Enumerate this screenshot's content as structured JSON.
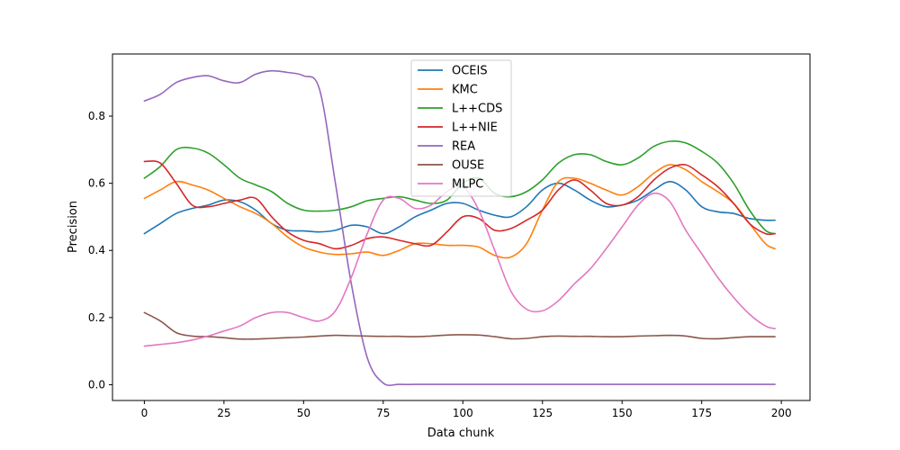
{
  "chart_data": {
    "type": "line",
    "title": "",
    "xlabel": "Data chunk",
    "ylabel": "Precision",
    "xlim": [
      -10,
      209
    ],
    "ylim": [
      -0.047,
      0.985
    ],
    "xticks": [
      0,
      25,
      50,
      75,
      100,
      125,
      150,
      175,
      200
    ],
    "yticks": [
      0.0,
      0.2,
      0.4,
      0.6,
      0.8
    ],
    "xtick_labels": [
      "0",
      "25",
      "50",
      "75",
      "100",
      "125",
      "150",
      "175",
      "200"
    ],
    "ytick_labels": [
      "0.0",
      "0.2",
      "0.4",
      "0.6",
      "0.8"
    ],
    "grid": false,
    "legend_position": "top-center",
    "x": [
      0,
      5,
      10,
      15,
      20,
      25,
      30,
      35,
      40,
      45,
      50,
      55,
      60,
      65,
      70,
      75,
      80,
      85,
      90,
      95,
      100,
      105,
      110,
      115,
      120,
      125,
      130,
      135,
      140,
      145,
      150,
      155,
      160,
      165,
      170,
      175,
      180,
      185,
      190,
      195,
      198
    ],
    "series": [
      {
        "name": "OCEIS",
        "color": "#1f77b4",
        "values": [
          0.45,
          0.48,
          0.51,
          0.525,
          0.535,
          0.55,
          0.545,
          0.52,
          0.48,
          0.46,
          0.458,
          0.455,
          0.46,
          0.475,
          0.47,
          0.45,
          0.47,
          0.5,
          0.52,
          0.54,
          0.54,
          0.52,
          0.505,
          0.5,
          0.53,
          0.58,
          0.6,
          0.58,
          0.55,
          0.53,
          0.535,
          0.55,
          0.58,
          0.605,
          0.58,
          0.53,
          0.515,
          0.51,
          0.495,
          0.49,
          0.49
        ]
      },
      {
        "name": "KMC",
        "color": "#ff7f0e",
        "values": [
          0.555,
          0.58,
          0.605,
          0.595,
          0.58,
          0.555,
          0.53,
          0.51,
          0.48,
          0.44,
          0.41,
          0.395,
          0.388,
          0.39,
          0.395,
          0.385,
          0.4,
          0.42,
          0.42,
          0.415,
          0.415,
          0.41,
          0.385,
          0.38,
          0.42,
          0.52,
          0.605,
          0.615,
          0.6,
          0.58,
          0.565,
          0.59,
          0.63,
          0.655,
          0.64,
          0.605,
          0.575,
          0.54,
          0.48,
          0.42,
          0.405
        ]
      },
      {
        "name": "L++CDS",
        "color": "#2ca02c",
        "values": [
          0.615,
          0.65,
          0.7,
          0.705,
          0.69,
          0.655,
          0.615,
          0.595,
          0.575,
          0.54,
          0.52,
          0.517,
          0.52,
          0.53,
          0.548,
          0.555,
          0.56,
          0.55,
          0.54,
          0.55,
          0.6,
          0.615,
          0.57,
          0.56,
          0.575,
          0.61,
          0.66,
          0.685,
          0.685,
          0.665,
          0.655,
          0.675,
          0.71,
          0.725,
          0.72,
          0.695,
          0.66,
          0.6,
          0.52,
          0.46,
          0.45
        ]
      },
      {
        "name": "L++NIE",
        "color": "#d62728",
        "values": [
          0.665,
          0.66,
          0.6,
          0.535,
          0.53,
          0.54,
          0.55,
          0.555,
          0.5,
          0.455,
          0.43,
          0.42,
          0.405,
          0.415,
          0.435,
          0.44,
          0.43,
          0.42,
          0.415,
          0.455,
          0.5,
          0.495,
          0.46,
          0.465,
          0.49,
          0.52,
          0.58,
          0.61,
          0.58,
          0.54,
          0.535,
          0.56,
          0.61,
          0.645,
          0.655,
          0.625,
          0.59,
          0.54,
          0.48,
          0.45,
          0.45
        ]
      },
      {
        "name": "REA",
        "color": "#9467bd",
        "values": [
          0.845,
          0.865,
          0.9,
          0.915,
          0.92,
          0.905,
          0.9,
          0.925,
          0.935,
          0.93,
          0.92,
          0.88,
          0.6,
          0.3,
          0.08,
          0.005,
          0.001,
          0.001,
          0.001,
          0.001,
          0.001,
          0.001,
          0.001,
          0.001,
          0.001,
          0.001,
          0.001,
          0.001,
          0.001,
          0.001,
          0.001,
          0.001,
          0.001,
          0.001,
          0.001,
          0.001,
          0.001,
          0.001,
          0.001,
          0.001,
          0.001
        ]
      },
      {
        "name": "OUSE",
        "color": "#8c564b",
        "values": [
          0.215,
          0.19,
          0.155,
          0.145,
          0.143,
          0.14,
          0.136,
          0.136,
          0.138,
          0.14,
          0.142,
          0.145,
          0.147,
          0.146,
          0.145,
          0.144,
          0.144,
          0.143,
          0.145,
          0.148,
          0.149,
          0.148,
          0.143,
          0.137,
          0.138,
          0.143,
          0.145,
          0.144,
          0.144,
          0.143,
          0.143,
          0.145,
          0.146,
          0.147,
          0.145,
          0.138,
          0.137,
          0.14,
          0.143,
          0.143,
          0.143
        ]
      },
      {
        "name": "MLPC",
        "color": "#e377c2",
        "values": [
          0.115,
          0.12,
          0.125,
          0.133,
          0.145,
          0.16,
          0.175,
          0.2,
          0.215,
          0.215,
          0.2,
          0.19,
          0.22,
          0.32,
          0.45,
          0.55,
          0.555,
          0.525,
          0.535,
          0.575,
          0.59,
          0.52,
          0.4,
          0.28,
          0.225,
          0.22,
          0.25,
          0.3,
          0.345,
          0.405,
          0.47,
          0.535,
          0.57,
          0.545,
          0.46,
          0.39,
          0.32,
          0.26,
          0.21,
          0.175,
          0.167
        ]
      }
    ]
  }
}
